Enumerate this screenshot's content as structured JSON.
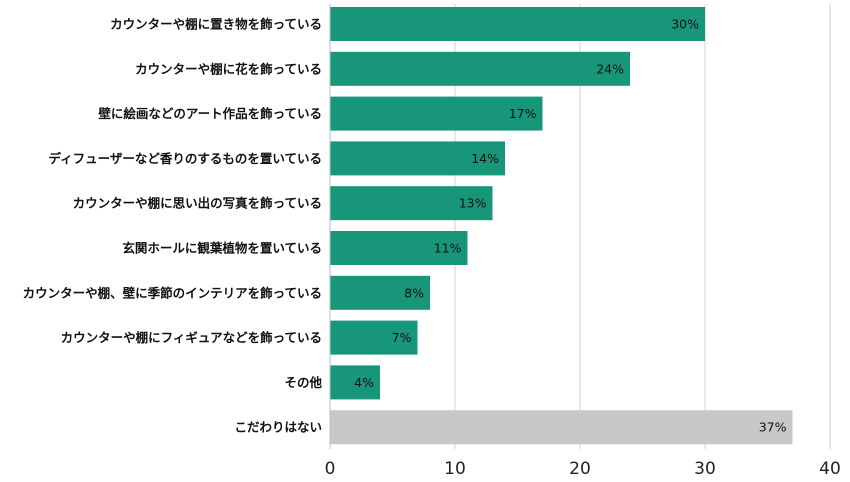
{
  "chart_data": {
    "type": "bar",
    "orientation": "horizontal",
    "categories": [
      "カウンターや棚に置き物を飾っている",
      "カウンターや棚に花を飾っている",
      "壁に絵画などのアート作品を飾っている",
      "ディフューザーなど香りのするものを置いている",
      "カウンターや棚に思い出の写真を飾っている",
      "玄関ホールに観葉植物を置いている",
      "カウンターや棚、壁に季節のインテリアを飾っている",
      "カウンターや棚にフィギュアなどを飾っている",
      "その他",
      "こだわりはない"
    ],
    "values": [
      30,
      24,
      17,
      14,
      13,
      11,
      8,
      7,
      4,
      37
    ],
    "value_labels": [
      "30%",
      "24%",
      "17%",
      "14%",
      "13%",
      "11%",
      "8%",
      "7%",
      "4%",
      "37%"
    ],
    "bar_colors": [
      "#17967a",
      "#17967a",
      "#17967a",
      "#17967a",
      "#17967a",
      "#17967a",
      "#17967a",
      "#17967a",
      "#17967a",
      "#c8c8c8"
    ],
    "x_ticks": [
      "0",
      "10",
      "20",
      "30",
      "40"
    ],
    "xlim": [
      0,
      40
    ],
    "grid": true,
    "title": "",
    "xlabel": "",
    "ylabel": ""
  }
}
